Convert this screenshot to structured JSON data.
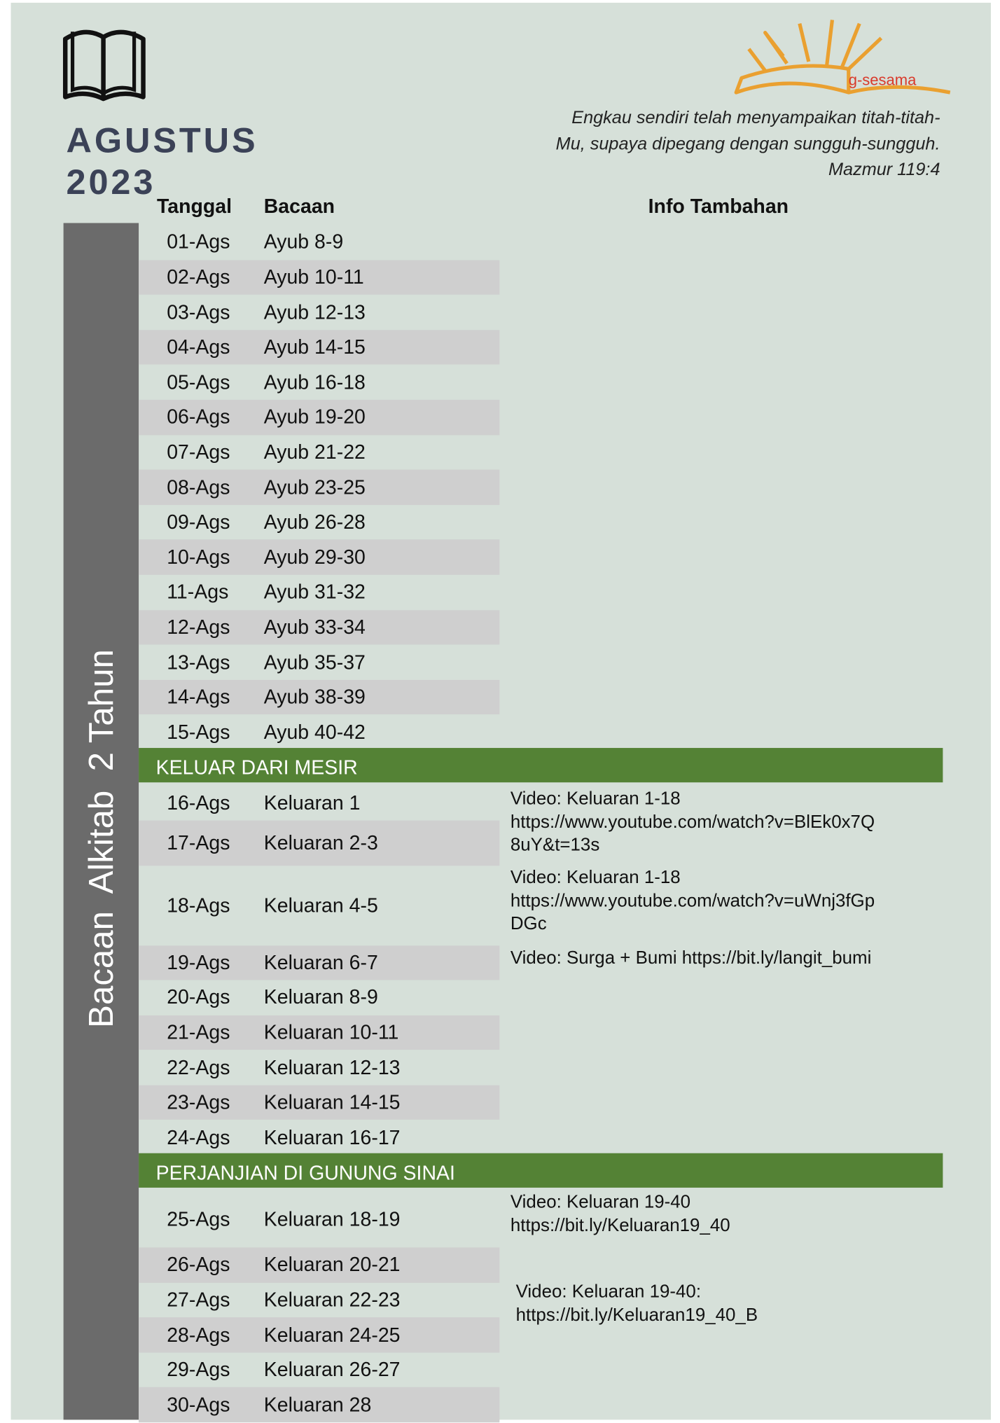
{
  "header": {
    "month": "AGUSTUS",
    "year": "2023",
    "logo": "g-sesama",
    "quote": [
      "Engkau sendiri telah menyampaikan titah-titah-",
      "Mu, supaya dipegang dengan sungguh-sungguh.",
      "Mazmur 119:4"
    ],
    "side_label": "Bacaan  Alkitab  2 Tahun"
  },
  "table": {
    "headers": [
      "Tanggal",
      "Bacaan",
      "Info Tambahan"
    ],
    "groups": [
      {
        "rows": [
          [
            "01-Ags",
            "Ayub 8-9"
          ],
          [
            "02-Ags",
            "Ayub 10-11"
          ],
          [
            "03-Ags",
            "Ayub 12-13"
          ],
          [
            "04-Ags",
            "Ayub 14-15"
          ],
          [
            "05-Ags",
            "Ayub 16-18"
          ],
          [
            "06-Ags",
            "Ayub 19-20"
          ],
          [
            "07-Ags",
            "Ayub 21-22"
          ],
          [
            "08-Ags",
            "Ayub 23-25"
          ],
          [
            "09-Ags",
            "Ayub 26-28"
          ],
          [
            "10-Ags",
            "Ayub 29-30"
          ],
          [
            "11-Ags",
            "Ayub 31-32"
          ],
          [
            "12-Ags",
            "Ayub 33-34"
          ],
          [
            "13-Ags",
            "Ayub 35-37"
          ],
          [
            "14-Ags",
            "Ayub 38-39"
          ],
          [
            "15-Ags",
            "Ayub 40-42"
          ]
        ]
      },
      {
        "title": "KELUAR DARI MESIR",
        "rows": [
          [
            "16-Ags",
            "Keluaran 1"
          ],
          [
            "17-Ags",
            "Keluaran 2-3"
          ],
          [
            "18-Ags",
            "Keluaran 4-5"
          ],
          [
            "19-Ags",
            "Keluaran 6-7"
          ],
          [
            "20-Ags",
            "Keluaran 8-9"
          ],
          [
            "21-Ags",
            "Keluaran 10-11"
          ],
          [
            "22-Ags",
            "Keluaran 12-13"
          ],
          [
            "23-Ags",
            "Keluaran 14-15"
          ],
          [
            "24-Ags",
            "Keluaran 16-17"
          ]
        ]
      },
      {
        "title": "PERJANJIAN DI GUNUNG SINAI",
        "rows": [
          [
            "25-Ags",
            "Keluaran 18-19"
          ],
          [
            "26-Ags",
            "Keluaran 20-21"
          ],
          [
            "27-Ags",
            "Keluaran 22-23"
          ],
          [
            "28-Ags",
            "Keluaran 24-25"
          ],
          [
            "29-Ags",
            "Keluaran 26-27"
          ],
          [
            "30-Ags",
            "Keluaran 28"
          ]
        ]
      }
    ],
    "notes": [
      [
        "Video: Keluaran 1-18",
        "https://www.youtube.com/watch?v=BlEk0x7Q",
        "8uY&t=13s"
      ],
      [
        "Video: Keluaran 1-18",
        "https://www.youtube.com/watch?v=uWnj3fGp",
        "DGc"
      ],
      [
        "Video: Surga + Bumi https://bit.ly/langit_bumi"
      ],
      [
        "Video: Keluaran 19-40",
        "https://bit.ly/Keluaran19_40"
      ],
      [
        "Video: Keluaran 19-40:",
        "https://bit.ly/Keluaran19_40_B"
      ]
    ]
  }
}
